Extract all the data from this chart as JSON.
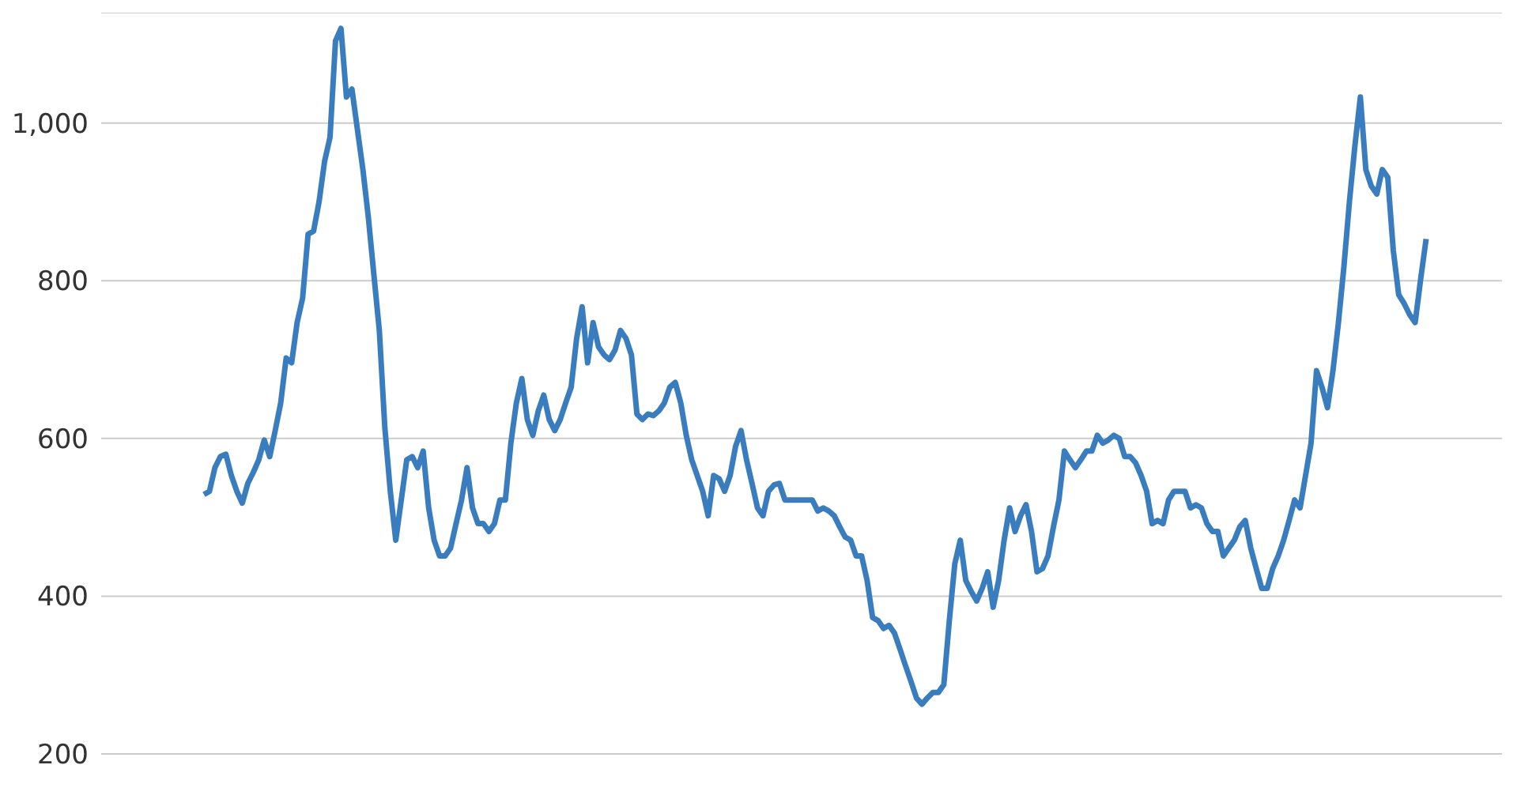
{
  "chart_data": {
    "type": "line",
    "categories": [
      null,
      null,
      null,
      null,
      null,
      null,
      null,
      null,
      null,
      null,
      null,
      null,
      null,
      null,
      null,
      null,
      null,
      null,
      null,
      null,
      null,
      null,
      null,
      null,
      null,
      null,
      null,
      null,
      null,
      null,
      null,
      null,
      null,
      null,
      null,
      null,
      null,
      null,
      null,
      null,
      null,
      null,
      null,
      null,
      null,
      null,
      null,
      null,
      null,
      null,
      null,
      null,
      null,
      null,
      null,
      null,
      null,
      null,
      null,
      null,
      null,
      null,
      null,
      null,
      null,
      null,
      null,
      null,
      null,
      null,
      null,
      null,
      null,
      null,
      null,
      null,
      null,
      null,
      null,
      null,
      null,
      null,
      null,
      null,
      null,
      null,
      null,
      null,
      null,
      null,
      null,
      null,
      null,
      null,
      null,
      null,
      null,
      null,
      null,
      null,
      null,
      null,
      null,
      null,
      null,
      null,
      null,
      null,
      null,
      null,
      null,
      null,
      null,
      null,
      null,
      null,
      null,
      null,
      null,
      null,
      null,
      null,
      null,
      null,
      null,
      null,
      null,
      null,
      null,
      null,
      null,
      null,
      null,
      null,
      null,
      null,
      null,
      null,
      null,
      null,
      null,
      null,
      null,
      null,
      null,
      null,
      null,
      null,
      null,
      null,
      null,
      null,
      null,
      null,
      null,
      null,
      null,
      null,
      null,
      null,
      null,
      null,
      null,
      null,
      null,
      null,
      null,
      null,
      null,
      null,
      null,
      null,
      null,
      null,
      null,
      null,
      null,
      null,
      null,
      null,
      null,
      null,
      null,
      null,
      null,
      null,
      null,
      null,
      null,
      null,
      null,
      null,
      null,
      null,
      null,
      null,
      null,
      null,
      null,
      null,
      null,
      null,
      null,
      null,
      null,
      null,
      null,
      null,
      null,
      null,
      null,
      null,
      null,
      null,
      null,
      null,
      null,
      null,
      null,
      null,
      null,
      null,
      null,
      null
    ],
    "series": [
      {
        "color": "#3a7dbf",
        "values": [
          529,
          533,
          563,
          577,
          580,
          553,
          533,
          518,
          543,
          557,
          573,
          598,
          577,
          610,
          645,
          702,
          696,
          747,
          778,
          859,
          863,
          900,
          951,
          982,
          1104,
          1120,
          1033,
          1043,
          992,
          941,
          880,
          808,
          737,
          614,
          533,
          471,
          522,
          573,
          577,
          563,
          584,
          512,
          471,
          451,
          451,
          461,
          492,
          522,
          563,
          512,
          492,
          492,
          482,
          492,
          522,
          522,
          594,
          645,
          676,
          624,
          604,
          635,
          655,
          624,
          610,
          624,
          645,
          665,
          727,
          767,
          696,
          747,
          716,
          706,
          700,
          712,
          737,
          727,
          706,
          631,
          624,
          631,
          629,
          635,
          645,
          665,
          671,
          645,
          604,
          573,
          553,
          533,
          502,
          553,
          549,
          533,
          553,
          590,
          610,
          573,
          543,
          512,
          502,
          533,
          541,
          543,
          522,
          522,
          522,
          522,
          522,
          522,
          508,
          512,
          508,
          502,
          488,
          475,
          471,
          451,
          451,
          420,
          373,
          369,
          359,
          363,
          353,
          333,
          312,
          292,
          271,
          263,
          271,
          278,
          278,
          288,
          369,
          441,
          471,
          420,
          406,
          394,
          410,
          431,
          386,
          420,
          471,
          512,
          482,
          502,
          516,
          482,
          431,
          435,
          451,
          488,
          522,
          584,
          573,
          563,
          573,
          584,
          584,
          604,
          594,
          598,
          604,
          600,
          577,
          577,
          569,
          553,
          533,
          492,
          496,
          492,
          522,
          533,
          533,
          533,
          512,
          516,
          512,
          492,
          482,
          482,
          451,
          461,
          471,
          488,
          496,
          461,
          435,
          410,
          410,
          435,
          451,
          471,
          496,
          522,
          512,
          553,
          594,
          686,
          665,
          639,
          686,
          747,
          818,
          900,
          971,
          1033,
          941,
          920,
          910,
          941,
          931,
          839,
          782,
          771,
          757,
          747,
          802,
          853
        ]
      }
    ],
    "ylim": [
      200,
      1140
    ],
    "yticks": [
      200,
      400,
      600,
      800,
      {
        "value": 1000,
        "label": "1,000"
      }
    ],
    "grid": "y",
    "tick_labels": "y",
    "marker": "none",
    "line_style": "solid"
  }
}
